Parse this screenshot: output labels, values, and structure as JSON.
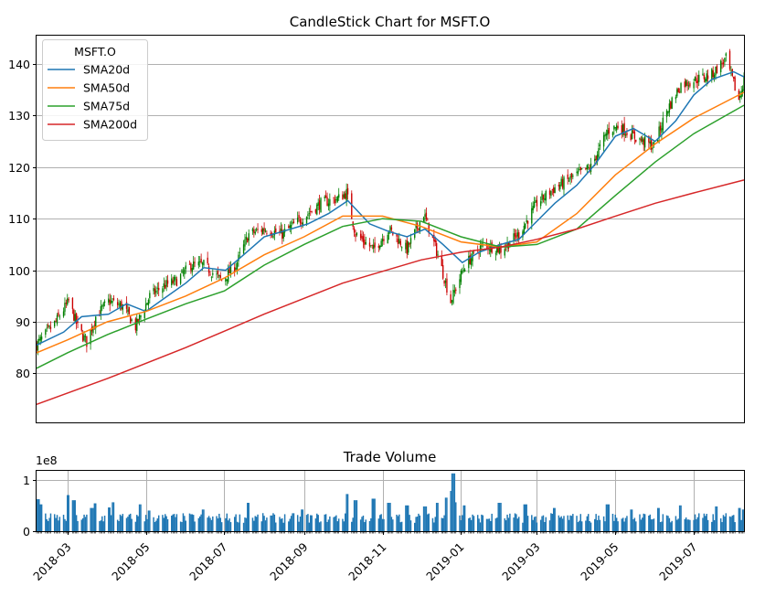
{
  "chart_data": [
    {
      "type": "candlestick",
      "title": "CandleStick Chart for MSFT.O",
      "ylim": [
        70.5,
        145.5
      ],
      "yticks": [
        80,
        90,
        100,
        110,
        120,
        130,
        140
      ],
      "grid": "y",
      "legend": {
        "title": "MSFT.O",
        "placement": "top-left",
        "entries": [
          "SMA20d",
          "SMA50d",
          "SMA75d",
          "SMA200d"
        ]
      },
      "colors": {
        "up": "#008000",
        "down": "#cc0000",
        "SMA20d": "#1f77b4",
        "SMA50d": "#ff7f0e",
        "SMA75d": "#2ca02c",
        "SMA200d": "#d62728"
      },
      "date_range": [
        "2018-02-05",
        "2019-08-09"
      ],
      "close_path": [
        [
          "2018-02-05",
          85.5
        ],
        [
          "2018-02-20",
          90.0
        ],
        [
          "2018-03-02",
          94.0
        ],
        [
          "2018-03-09",
          89.0
        ],
        [
          "2018-03-16",
          86.0
        ],
        [
          "2018-03-23",
          91.0
        ],
        [
          "2018-04-02",
          94.0
        ],
        [
          "2018-04-13",
          93.0
        ],
        [
          "2018-04-23",
          89.0
        ],
        [
          "2018-05-04",
          95.0
        ],
        [
          "2018-05-15",
          97.0
        ],
        [
          "2018-05-25",
          98.0
        ],
        [
          "2018-06-05",
          101.0
        ],
        [
          "2018-06-15",
          101.0
        ],
        [
          "2018-06-29",
          98.0
        ],
        [
          "2018-07-10",
          101.0
        ],
        [
          "2018-07-20",
          107.0
        ],
        [
          "2018-08-01",
          108.0
        ],
        [
          "2018-08-15",
          107.0
        ],
        [
          "2018-08-30",
          110.0
        ],
        [
          "2018-09-14",
          113.0
        ],
        [
          "2018-09-28",
          114.0
        ],
        [
          "2018-10-04",
          115.0
        ],
        [
          "2018-10-11",
          107.0
        ],
        [
          "2018-10-25",
          104.0
        ],
        [
          "2018-11-06",
          108.0
        ],
        [
          "2018-11-20",
          104.0
        ],
        [
          "2018-12-03",
          111.0
        ],
        [
          "2018-12-14",
          103.0
        ],
        [
          "2018-12-24",
          94.0
        ],
        [
          "2019-01-04",
          101.0
        ],
        [
          "2019-01-18",
          105.0
        ],
        [
          "2019-02-01",
          104.0
        ],
        [
          "2019-02-15",
          107.0
        ],
        [
          "2019-03-01",
          113.0
        ],
        [
          "2019-03-15",
          116.0
        ],
        [
          "2019-03-29",
          118.0
        ],
        [
          "2019-04-12",
          120.0
        ],
        [
          "2019-04-25",
          127.0
        ],
        [
          "2019-05-03",
          128.0
        ],
        [
          "2019-05-15",
          126.0
        ],
        [
          "2019-05-31",
          124.0
        ],
        [
          "2019-06-10",
          131.0
        ],
        [
          "2019-06-21",
          136.0
        ],
        [
          "2019-07-03",
          137.0
        ],
        [
          "2019-07-15",
          138.0
        ],
        [
          "2019-07-26",
          141.0
        ],
        [
          "2019-08-05",
          133.0
        ],
        [
          "2019-08-09",
          137.0
        ]
      ],
      "series": [
        {
          "name": "SMA20d",
          "points": [
            [
              "2018-02-05",
              85.5
            ],
            [
              "2018-02-26",
              88.0
            ],
            [
              "2018-03-12",
              91.0
            ],
            [
              "2018-04-02",
              91.5
            ],
            [
              "2018-04-16",
              93.5
            ],
            [
              "2018-05-01",
              92.0
            ],
            [
              "2018-05-15",
              94.5
            ],
            [
              "2018-06-01",
              97.5
            ],
            [
              "2018-06-15",
              100.5
            ],
            [
              "2018-07-02",
              100.0
            ],
            [
              "2018-07-16",
              103.0
            ],
            [
              "2018-08-01",
              106.5
            ],
            [
              "2018-08-15",
              107.5
            ],
            [
              "2018-09-04",
              109.0
            ],
            [
              "2018-09-20",
              111.0
            ],
            [
              "2018-10-05",
              113.5
            ],
            [
              "2018-10-22",
              109.0
            ],
            [
              "2018-11-06",
              107.5
            ],
            [
              "2018-11-20",
              106.5
            ],
            [
              "2018-12-04",
              108.0
            ],
            [
              "2018-12-18",
              105.0
            ],
            [
              "2019-01-02",
              101.5
            ],
            [
              "2019-01-15",
              103.5
            ],
            [
              "2019-02-01",
              105.0
            ],
            [
              "2019-02-15",
              106.0
            ],
            [
              "2019-03-01",
              109.5
            ],
            [
              "2019-03-15",
              113.0
            ],
            [
              "2019-04-01",
              116.5
            ],
            [
              "2019-04-15",
              120.5
            ],
            [
              "2019-05-01",
              126.0
            ],
            [
              "2019-05-15",
              127.5
            ],
            [
              "2019-06-01",
              125.0
            ],
            [
              "2019-06-17",
              129.0
            ],
            [
              "2019-07-01",
              134.0
            ],
            [
              "2019-07-15",
              137.0
            ],
            [
              "2019-08-01",
              138.5
            ],
            [
              "2019-08-09",
              137.5
            ]
          ]
        },
        {
          "name": "SMA50d",
          "points": [
            [
              "2018-02-05",
              84.0
            ],
            [
              "2018-03-01",
              86.5
            ],
            [
              "2018-04-01",
              90.0
            ],
            [
              "2018-05-01",
              92.0
            ],
            [
              "2018-06-01",
              95.0
            ],
            [
              "2018-07-01",
              98.5
            ],
            [
              "2018-08-01",
              103.0
            ],
            [
              "2018-09-01",
              106.5
            ],
            [
              "2018-10-01",
              110.5
            ],
            [
              "2018-11-01",
              110.5
            ],
            [
              "2018-12-01",
              108.5
            ],
            [
              "2019-01-01",
              105.5
            ],
            [
              "2019-02-01",
              104.5
            ],
            [
              "2019-03-01",
              105.5
            ],
            [
              "2019-04-01",
              111.0
            ],
            [
              "2019-05-01",
              118.5
            ],
            [
              "2019-06-01",
              124.5
            ],
            [
              "2019-07-01",
              129.5
            ],
            [
              "2019-08-09",
              134.5
            ]
          ]
        },
        {
          "name": "SMA75d",
          "points": [
            [
              "2018-02-05",
              81.0
            ],
            [
              "2018-03-01",
              84.0
            ],
            [
              "2018-04-01",
              87.5
            ],
            [
              "2018-05-01",
              90.5
            ],
            [
              "2018-06-01",
              93.5
            ],
            [
              "2018-07-01",
              96.0
            ],
            [
              "2018-08-01",
              101.0
            ],
            [
              "2018-09-01",
              105.0
            ],
            [
              "2018-10-01",
              108.5
            ],
            [
              "2018-11-01",
              110.0
            ],
            [
              "2018-12-01",
              109.5
            ],
            [
              "2019-01-01",
              106.5
            ],
            [
              "2019-02-01",
              104.5
            ],
            [
              "2019-03-01",
              105.0
            ],
            [
              "2019-04-01",
              108.0
            ],
            [
              "2019-05-01",
              114.5
            ],
            [
              "2019-06-01",
              121.0
            ],
            [
              "2019-07-01",
              126.5
            ],
            [
              "2019-08-09",
              132.0
            ]
          ]
        },
        {
          "name": "SMA200d",
          "points": [
            [
              "2018-02-05",
              74.0
            ],
            [
              "2018-04-01",
              79.0
            ],
            [
              "2018-06-01",
              85.0
            ],
            [
              "2018-08-01",
              91.5
            ],
            [
              "2018-10-01",
              97.5
            ],
            [
              "2018-12-01",
              102.0
            ],
            [
              "2019-01-01",
              103.5
            ],
            [
              "2019-02-01",
              104.5
            ],
            [
              "2019-03-01",
              106.0
            ],
            [
              "2019-04-01",
              108.0
            ],
            [
              "2019-05-01",
              110.5
            ],
            [
              "2019-06-01",
              113.0
            ],
            [
              "2019-07-01",
              115.0
            ],
            [
              "2019-08-09",
              117.5
            ]
          ]
        }
      ]
    },
    {
      "type": "bar",
      "title": "Trade Volume",
      "scale_label": "1e8",
      "ylim": [
        0,
        1.17
      ],
      "yticks": [
        0,
        1
      ],
      "ytick_labels": [
        "0",
        "1"
      ],
      "color": "#1f77b4",
      "grid": "both",
      "volume_baseline": 0.27,
      "volume_spikes": [
        [
          "2018-02-06",
          0.62
        ],
        [
          "2018-02-09",
          0.52
        ],
        [
          "2018-03-02",
          0.7
        ],
        [
          "2018-03-06",
          0.6
        ],
        [
          "2018-03-20",
          0.45
        ],
        [
          "2018-03-23",
          0.54
        ],
        [
          "2018-04-02",
          0.46
        ],
        [
          "2018-04-06",
          0.56
        ],
        [
          "2018-04-27",
          0.52
        ],
        [
          "2018-05-04",
          0.4
        ],
        [
          "2018-06-15",
          0.42
        ],
        [
          "2018-07-20",
          0.55
        ],
        [
          "2018-08-31",
          0.42
        ],
        [
          "2018-10-05",
          0.72
        ],
        [
          "2018-10-11",
          0.6
        ],
        [
          "2018-10-25",
          0.63
        ],
        [
          "2018-11-06",
          0.55
        ],
        [
          "2018-11-20",
          0.5
        ],
        [
          "2018-12-04",
          0.48
        ],
        [
          "2018-12-14",
          0.55
        ],
        [
          "2018-12-21",
          0.65
        ],
        [
          "2018-12-24",
          0.78
        ],
        [
          "2018-12-26",
          1.12
        ],
        [
          "2018-12-28",
          0.56
        ],
        [
          "2019-01-04",
          0.5
        ],
        [
          "2019-01-31",
          0.55
        ],
        [
          "2019-02-20",
          0.52
        ],
        [
          "2019-03-15",
          0.45
        ],
        [
          "2019-04-25",
          0.52
        ],
        [
          "2019-05-13",
          0.42
        ],
        [
          "2019-06-03",
          0.45
        ],
        [
          "2019-06-21",
          0.5
        ],
        [
          "2019-07-19",
          0.48
        ],
        [
          "2019-08-05",
          0.45
        ],
        [
          "2019-08-09",
          0.42
        ]
      ],
      "xtick_labels": [
        "2018-03",
        "2018-05",
        "2018-07",
        "2018-09",
        "2018-11",
        "2019-01",
        "2019-03",
        "2019-05",
        "2019-07"
      ]
    }
  ]
}
